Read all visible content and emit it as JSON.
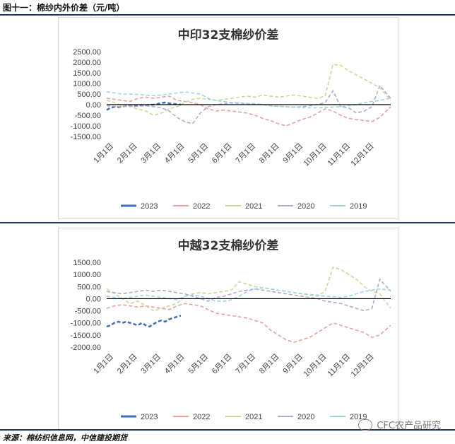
{
  "header": {
    "figure_title": "图十一：棉纱内外价差（元/吨）"
  },
  "source_text": "来源：棉纺织信息网，中信建投期货",
  "watermark_text": "CFC农产品研究",
  "colors": {
    "2023": "#3f6fb5",
    "2022": "#e4a2a2",
    "2021": "#c9db9a",
    "2020": "#b8a9cc",
    "2019": "#9fd3e6"
  },
  "chart_data": [
    {
      "type": "line",
      "title": "中印32支棉纱价差",
      "yticks": [
        "2500.00",
        "2000.00",
        "1500.00",
        "1000.00",
        "500.00",
        "0.00",
        "-500.00",
        "-1000.00",
        "-1500.00"
      ],
      "ylim": [
        -1500,
        2500
      ],
      "xticks": [
        "1月1日",
        "2月1日",
        "3月1日",
        "4月1日",
        "5月1日",
        "6月1日",
        "7月1日",
        "8月1日",
        "9月1日",
        "10月1日",
        "11月1日",
        "12月1日"
      ],
      "xlim": [
        0,
        364
      ],
      "series": [
        {
          "name": "2023",
          "color": "#3f6fb5",
          "x": [
            0,
            5,
            10,
            15,
            20,
            25,
            30,
            35,
            40,
            45,
            50,
            55,
            60,
            65,
            70,
            75,
            80,
            85,
            90,
            95
          ],
          "y": [
            -250,
            -150,
            -100,
            -120,
            -80,
            -60,
            -50,
            -60,
            -40,
            -20,
            -30,
            -10,
            0,
            30,
            80,
            100,
            60,
            40,
            20,
            0
          ]
        },
        {
          "name": "2022",
          "color": "#e4a2a2",
          "x": [
            0,
            10,
            20,
            30,
            40,
            50,
            60,
            70,
            80,
            90,
            100,
            110,
            120,
            130,
            140,
            150,
            160,
            170,
            180,
            190,
            200,
            210,
            220,
            230,
            240,
            250,
            260,
            270,
            280,
            290,
            300,
            310,
            320,
            330,
            340,
            350,
            364
          ],
          "y": [
            300,
            250,
            200,
            150,
            300,
            350,
            300,
            350,
            400,
            200,
            150,
            100,
            0,
            -200,
            -300,
            -250,
            -300,
            -350,
            -400,
            -500,
            -650,
            -750,
            -900,
            -1000,
            -850,
            -700,
            -600,
            -400,
            -200,
            -300,
            -500,
            -650,
            -700,
            -750,
            -800,
            -600,
            -100
          ]
        },
        {
          "name": "2021",
          "color": "#c9db9a",
          "x": [
            0,
            10,
            20,
            30,
            40,
            50,
            60,
            70,
            80,
            90,
            100,
            110,
            120,
            130,
            140,
            150,
            160,
            170,
            180,
            190,
            200,
            210,
            220,
            230,
            240,
            250,
            260,
            270,
            280,
            290,
            300,
            310,
            320,
            330,
            340,
            350,
            364
          ],
          "y": [
            200,
            100,
            -50,
            -100,
            -200,
            -300,
            -500,
            -400,
            -200,
            -100,
            100,
            250,
            300,
            250,
            200,
            250,
            300,
            350,
            400,
            350,
            450,
            400,
            350,
            400,
            450,
            400,
            350,
            300,
            400,
            1900,
            1850,
            1600,
            1400,
            1200,
            1000,
            800,
            200
          ]
        },
        {
          "name": "2020",
          "color": "#b8a9cc",
          "x": [
            0,
            10,
            20,
            30,
            40,
            50,
            60,
            70,
            80,
            90,
            100,
            110,
            120,
            130,
            140,
            150,
            160,
            170,
            180,
            190,
            200,
            210,
            220,
            230,
            240,
            250,
            260,
            270,
            280,
            290,
            300,
            310,
            320,
            330,
            340,
            350,
            364
          ],
          "y": [
            -50,
            -80,
            -100,
            -60,
            -80,
            -50,
            -100,
            -150,
            -300,
            -600,
            -800,
            -900,
            -400,
            -100,
            0,
            50,
            80,
            60,
            40,
            20,
            0,
            -50,
            -80,
            -100,
            -120,
            -100,
            -50,
            0,
            100,
            650,
            -100,
            -150,
            -400,
            -300,
            -100,
            900,
            300
          ]
        },
        {
          "name": "2019",
          "color": "#9fd3e6",
          "x": [
            0,
            10,
            20,
            30,
            40,
            50,
            60,
            70,
            80,
            90,
            100,
            110,
            120,
            130,
            140,
            150,
            160,
            170,
            180,
            190,
            200,
            210,
            220,
            230,
            240,
            250,
            260,
            270,
            280,
            290,
            300,
            310,
            320,
            330,
            340,
            350,
            364
          ],
          "y": [
            600,
            550,
            500,
            500,
            480,
            450,
            420,
            450,
            500,
            550,
            600,
            550,
            500,
            300,
            200,
            150,
            100,
            80,
            60,
            50,
            0,
            -50,
            -80,
            -100,
            -120,
            -130,
            -150,
            -150,
            -130,
            -120,
            -100,
            -50,
            0,
            100,
            150,
            200,
            300
          ]
        }
      ]
    },
    {
      "type": "line",
      "title": "中越32支棉纱价差",
      "yticks": [
        "1500.00",
        "1000.00",
        "500.00",
        "0.00",
        "-500.00",
        "-1000.00",
        "-1500.00",
        "-2000.00"
      ],
      "ylim": [
        -2000,
        1500
      ],
      "xticks": [
        "1月1日",
        "2月1日",
        "3月1日",
        "4月1日",
        "5月1日",
        "6月1日",
        "7月1日",
        "8月1日",
        "9月1日",
        "10月1日",
        "11月1日",
        "12月1日"
      ],
      "xlim": [
        0,
        364
      ],
      "series": [
        {
          "name": "2023",
          "color": "#3f6fb5",
          "x": [
            0,
            5,
            10,
            15,
            20,
            25,
            30,
            35,
            40,
            45,
            50,
            55,
            60,
            65,
            70,
            75,
            80,
            85,
            90,
            95
          ],
          "y": [
            -1150,
            -1100,
            -1000,
            -950,
            -1000,
            -950,
            -1000,
            -1050,
            -1100,
            -1000,
            -1100,
            -1150,
            -1050,
            -950,
            -900,
            -950,
            -850,
            -800,
            -750,
            -700
          ]
        },
        {
          "name": "2022",
          "color": "#e4a2a2",
          "x": [
            0,
            10,
            20,
            30,
            40,
            50,
            60,
            70,
            80,
            90,
            100,
            110,
            120,
            130,
            140,
            150,
            160,
            170,
            180,
            190,
            200,
            210,
            220,
            230,
            240,
            250,
            260,
            270,
            280,
            290,
            300,
            310,
            320,
            330,
            340,
            350,
            364
          ],
          "y": [
            -400,
            -300,
            -250,
            -300,
            -350,
            -300,
            -350,
            -400,
            -450,
            -300,
            -200,
            -250,
            -300,
            -450,
            -600,
            -650,
            -700,
            -750,
            -800,
            -900,
            -1000,
            -1300,
            -1500,
            -1700,
            -1800,
            -1700,
            -1600,
            -1400,
            -1200,
            -1000,
            -1100,
            -1200,
            -1300,
            -1400,
            -1600,
            -1500,
            -1100
          ]
        },
        {
          "name": "2021",
          "color": "#c9db9a",
          "x": [
            0,
            10,
            20,
            30,
            40,
            50,
            60,
            70,
            80,
            90,
            100,
            110,
            120,
            130,
            140,
            150,
            160,
            170,
            180,
            190,
            200,
            210,
            220,
            230,
            240,
            250,
            260,
            270,
            280,
            290,
            300,
            310,
            320,
            330,
            340,
            350,
            364
          ],
          "y": [
            400,
            200,
            0,
            -200,
            -100,
            -300,
            -500,
            -400,
            -300,
            -200,
            100,
            200,
            250,
            200,
            250,
            300,
            350,
            700,
            600,
            500,
            450,
            400,
            350,
            300,
            250,
            200,
            150,
            100,
            300,
            1300,
            1200,
            1000,
            800,
            500,
            300,
            200,
            -400
          ]
        },
        {
          "name": "2020",
          "color": "#b8a9cc",
          "x": [
            0,
            10,
            20,
            30,
            40,
            50,
            60,
            70,
            80,
            90,
            100,
            110,
            120,
            130,
            140,
            150,
            160,
            170,
            180,
            190,
            200,
            210,
            220,
            230,
            240,
            250,
            260,
            270,
            280,
            290,
            300,
            310,
            320,
            330,
            340,
            350,
            364
          ],
          "y": [
            300,
            250,
            200,
            250,
            300,
            350,
            300,
            350,
            300,
            250,
            200,
            100,
            0,
            -100,
            50,
            100,
            200,
            300,
            350,
            400,
            350,
            300,
            250,
            200,
            150,
            100,
            50,
            0,
            -100,
            -150,
            -200,
            -300,
            -400,
            -500,
            -400,
            800,
            300
          ]
        },
        {
          "name": "2019",
          "color": "#9fd3e6",
          "x": [
            0,
            10,
            20,
            30,
            40,
            50,
            60,
            70,
            80,
            90,
            100,
            110,
            120,
            130,
            140,
            150,
            160,
            170,
            180,
            190,
            200,
            210,
            220,
            230,
            240,
            250,
            260,
            270,
            280,
            290,
            300,
            310,
            320,
            330,
            340,
            350,
            364
          ],
          "y": [
            100,
            50,
            0,
            50,
            100,
            150,
            100,
            50,
            0,
            -50,
            100,
            150,
            100,
            0,
            -100,
            -100,
            -50,
            100,
            300,
            400,
            450,
            400,
            350,
            300,
            250,
            200,
            180,
            150,
            100,
            80,
            50,
            100,
            200,
            300,
            350,
            400,
            350
          ]
        }
      ]
    }
  ]
}
